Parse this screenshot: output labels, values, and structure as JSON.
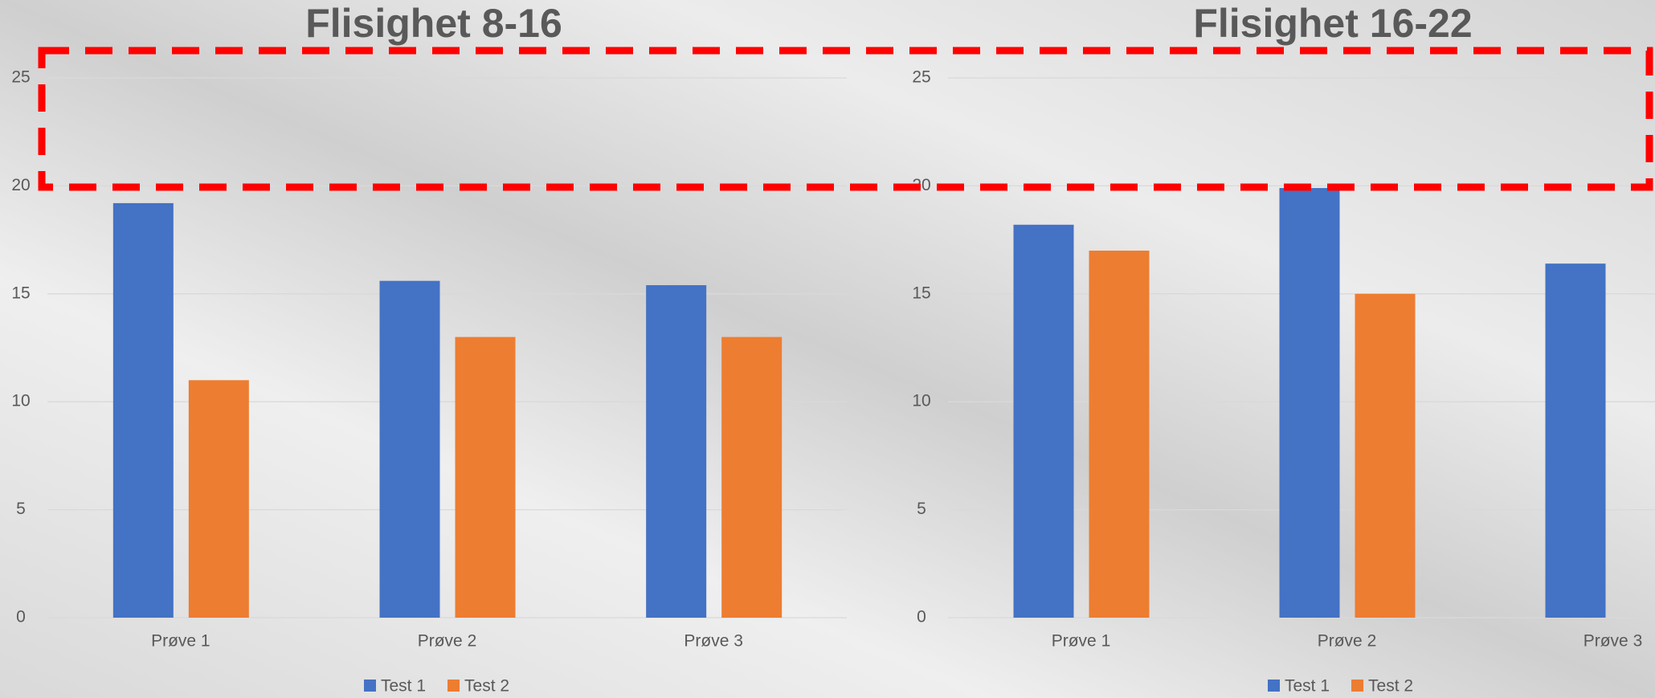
{
  "chart_data": [
    {
      "type": "bar",
      "title": "Flisighet 8-16",
      "categories": [
        "Prøve 1",
        "Prøve 2",
        "Prøve 3"
      ],
      "series": [
        {
          "name": "Test 1",
          "color": "#4472c4",
          "values": [
            19.2,
            15.6,
            15.4
          ]
        },
        {
          "name": "Test 2",
          "color": "#ed7d31",
          "values": [
            11.0,
            13.0,
            13.0
          ]
        }
      ],
      "ylim": [
        0,
        25
      ],
      "yticks": [
        0,
        5,
        10,
        15,
        20,
        25
      ],
      "grid": true
    },
    {
      "type": "bar",
      "title": "Flisighet 16-22",
      "categories": [
        "Prøve 1",
        "Prøve 2",
        "Prøve 3"
      ],
      "series": [
        {
          "name": "Test 1",
          "color": "#4472c4",
          "values": [
            18.2,
            19.9,
            16.4
          ]
        },
        {
          "name": "Test 2",
          "color": "#ed7d31",
          "values": [
            17.0,
            15.0,
            null
          ]
        }
      ],
      "ylim": [
        0,
        25
      ],
      "yticks": [
        0,
        5,
        10,
        15,
        20,
        25
      ],
      "grid": true
    }
  ]
}
